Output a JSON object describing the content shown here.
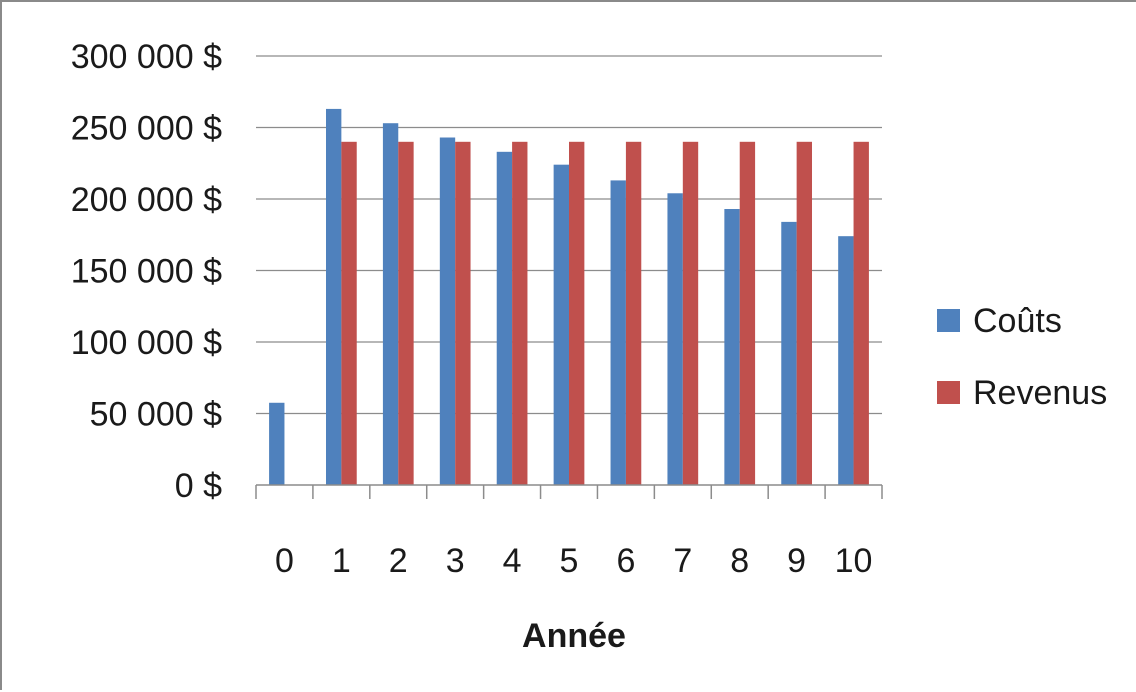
{
  "chart_data": {
    "type": "bar",
    "xlabel": "Année",
    "ylabel": "",
    "categories": [
      "0",
      "1",
      "2",
      "3",
      "4",
      "5",
      "6",
      "7",
      "8",
      "9",
      "10"
    ],
    "series": [
      {
        "name": "Coûts",
        "color": "#4f81bd",
        "values": [
          57500,
          263000,
          253000,
          243000,
          233000,
          224000,
          213000,
          204000,
          193000,
          184000,
          174000
        ]
      },
      {
        "name": "Revenus",
        "color": "#c0504d",
        "values": [
          0,
          240000,
          240000,
          240000,
          240000,
          240000,
          240000,
          240000,
          240000,
          240000,
          240000
        ]
      }
    ],
    "ylim": [
      0,
      300000
    ],
    "yticks": [
      0,
      50000,
      100000,
      150000,
      200000,
      250000,
      300000
    ],
    "ytick_labels": [
      "0 $",
      "50 000 $",
      "100 000 $",
      "150 000 $",
      "200 000 $",
      "250 000 $",
      "300 000 $"
    ],
    "grid": true,
    "legend": "right"
  }
}
